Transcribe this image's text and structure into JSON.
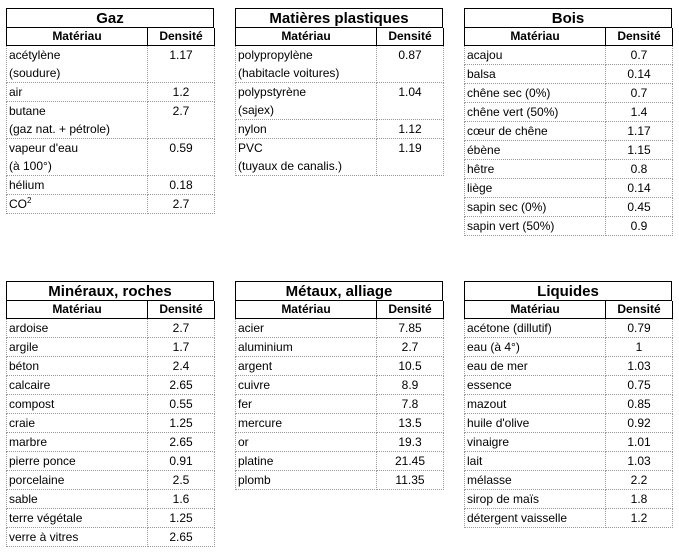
{
  "col_material": "Matériau",
  "col_density": "Densité",
  "tables": [
    {
      "title": "Gaz",
      "rows": [
        {
          "m": "acétylène",
          "m2": "(soudure)",
          "d": "1.17"
        },
        {
          "m": "air",
          "d": "1.2"
        },
        {
          "m": "butane",
          "m2": "(gaz nat. + pétrole)",
          "d": "2.7"
        },
        {
          "m": "vapeur d'eau",
          "m2": "(à 100°)",
          "d": "0.59"
        },
        {
          "m": "hélium",
          "d": "0.18"
        },
        {
          "m": "CO",
          "sup": "2",
          "d": "2.7"
        }
      ]
    },
    {
      "title": "Matières plastiques",
      "rows": [
        {
          "m": "polypropylène",
          "m2": "(habitacle voitures)",
          "d": "0.87"
        },
        {
          "m": "polypstyrène",
          "m2": "(sajex)",
          "d": "1.04"
        },
        {
          "m": "nylon",
          "d": "1.12"
        },
        {
          "m": "PVC",
          "m2": "(tuyaux de canalis.)",
          "d": "1.19"
        }
      ]
    },
    {
      "title": "Bois",
      "rows": [
        {
          "m": "acajou",
          "d": "0.7"
        },
        {
          "m": "balsa",
          "d": "0.14"
        },
        {
          "m": "chêne sec (0%)",
          "d": "0.7"
        },
        {
          "m": "chêne vert (50%)",
          "d": "1.4"
        },
        {
          "m": "cœur de chêne",
          "d": "1.17"
        },
        {
          "m": "ébène",
          "d": "1.15"
        },
        {
          "m": "hêtre",
          "d": "0.8"
        },
        {
          "m": "liège",
          "d": "0.14"
        },
        {
          "m": "sapin sec (0%)",
          "d": "0.45"
        },
        {
          "m": "sapin vert (50%)",
          "d": "0.9"
        }
      ]
    },
    {
      "title": "Minéraux, roches",
      "rows": [
        {
          "m": "ardoise",
          "d": "2.7"
        },
        {
          "m": "argile",
          "d": "1.7"
        },
        {
          "m": "béton",
          "d": "2.4"
        },
        {
          "m": "calcaire",
          "d": "2.65"
        },
        {
          "m": "compost",
          "d": "0.55"
        },
        {
          "m": "craie",
          "d": "1.25"
        },
        {
          "m": "marbre",
          "d": "2.65"
        },
        {
          "m": "pierre ponce",
          "d": "0.91"
        },
        {
          "m": "porcelaine",
          "d": "2.5"
        },
        {
          "m": "sable",
          "d": "1.6"
        },
        {
          "m": "terre végétale",
          "d": "1.25"
        },
        {
          "m": "verre à vitres",
          "d": "2.65"
        }
      ]
    },
    {
      "title": "Métaux, alliage",
      "rows": [
        {
          "m": "acier",
          "d": "7.85"
        },
        {
          "m": "aluminium",
          "d": "2.7"
        },
        {
          "m": "argent",
          "d": "10.5"
        },
        {
          "m": "cuivre",
          "d": "8.9"
        },
        {
          "m": "fer",
          "d": "7.8"
        },
        {
          "m": "mercure",
          "d": "13.5"
        },
        {
          "m": "or",
          "d": "19.3"
        },
        {
          "m": "platine",
          "d": "21.45"
        },
        {
          "m": "plomb",
          "d": "11.35"
        }
      ]
    },
    {
      "title": "Liquides",
      "rows": [
        {
          "m": "acétone (dillutif)",
          "d": "0.79"
        },
        {
          "m": "eau (à 4°)",
          "d": "1"
        },
        {
          "m": "eau de mer",
          "d": "1.03"
        },
        {
          "m": "essence",
          "d": "0.75"
        },
        {
          "m": "mazout",
          "d": "0.85"
        },
        {
          "m": "huile d'olive",
          "d": "0.92"
        },
        {
          "m": "vinaigre",
          "d": "1.01"
        },
        {
          "m": "lait",
          "d": "1.03"
        },
        {
          "m": "mélasse",
          "d": "2.2"
        },
        {
          "m": "sirop de maïs",
          "d": "1.8"
        },
        {
          "m": "détergent vaisselle",
          "d": "1.2"
        }
      ]
    }
  ]
}
